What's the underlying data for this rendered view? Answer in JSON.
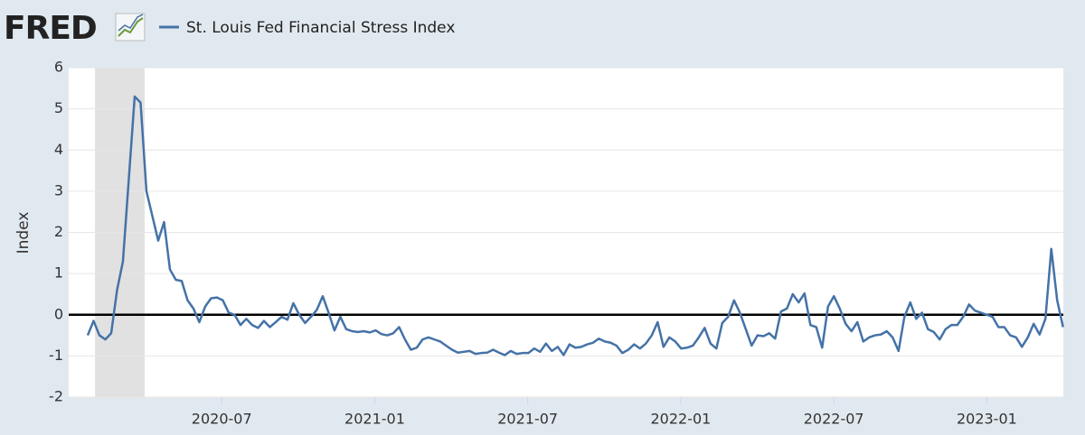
{
  "brand": "FRED",
  "chart_data": {
    "type": "line",
    "y_label": "Index",
    "xlim": [
      2020.0,
      2023.25
    ],
    "xticks": [
      {
        "value": 2020.5,
        "label": "2020-07"
      },
      {
        "value": 2021.0,
        "label": "2021-01"
      },
      {
        "value": 2021.5,
        "label": "2021-07"
      },
      {
        "value": 2022.0,
        "label": "2022-01"
      },
      {
        "value": 2022.5,
        "label": "2022-07"
      },
      {
        "value": 2023.0,
        "label": "2023-01"
      }
    ],
    "ylim": [
      -2,
      6
    ],
    "yticks": [
      -2,
      -1,
      0,
      1,
      2,
      3,
      4,
      5,
      6
    ],
    "grid": true,
    "zero_line": true,
    "shading": [
      {
        "start": 2020.086,
        "end": 2020.248,
        "color": "#e1e1e1"
      }
    ],
    "x": [
      2020.062,
      2020.0812,
      2020.1004,
      2020.1196,
      2020.1388,
      2020.158,
      2020.1772,
      2020.1964,
      2020.2156,
      2020.2348,
      2020.254,
      2020.2732,
      2020.2924,
      2020.3116,
      2020.3308,
      2020.35,
      2020.3692,
      2020.3884,
      2020.4076,
      2020.4268,
      2020.446,
      2020.4652,
      2020.4844,
      2020.5036,
      2020.5228,
      2020.542,
      2020.5612,
      2020.5804,
      2020.5996,
      2020.6188,
      2020.638,
      2020.6572,
      2020.6764,
      2020.6956,
      2020.7148,
      2020.734,
      2020.7532,
      2020.7724,
      2020.7916,
      2020.8108,
      2020.83,
      2020.8492,
      2020.8684,
      2020.8876,
      2020.9068,
      2020.926,
      2020.9452,
      2020.9644,
      2020.9836,
      2021.0028,
      2021.022,
      2021.0412,
      2021.0604,
      2021.0796,
      2021.0988,
      2021.118,
      2021.1372,
      2021.1564,
      2021.1756,
      2021.1948,
      2021.214,
      2021.2332,
      2021.2524,
      2021.2716,
      2021.2908,
      2021.31,
      2021.3292,
      2021.3484,
      2021.3676,
      2021.3868,
      2021.406,
      2021.4252,
      2021.4444,
      2021.4636,
      2021.4828,
      2021.502,
      2021.5212,
      2021.5404,
      2021.5596,
      2021.5788,
      2021.598,
      2021.6172,
      2021.6364,
      2021.6556,
      2021.6748,
      2021.694,
      2021.7132,
      2021.7324,
      2021.7516,
      2021.7708,
      2021.79,
      2021.8092,
      2021.8284,
      2021.8476,
      2021.8668,
      2021.886,
      2021.9052,
      2021.9244,
      2021.9436,
      2021.9628,
      2021.982,
      2022.0012,
      2022.0204,
      2022.0396,
      2022.0588,
      2022.078,
      2022.0972,
      2022.1164,
      2022.1356,
      2022.1548,
      2022.174,
      2022.1932,
      2022.2124,
      2022.2316,
      2022.2508,
      2022.27,
      2022.2892,
      2022.3084,
      2022.3276,
      2022.3468,
      2022.366,
      2022.3852,
      2022.4044,
      2022.4236,
      2022.4428,
      2022.462,
      2022.4812,
      2022.5004,
      2022.5196,
      2022.5388,
      2022.558,
      2022.5772,
      2022.5964,
      2022.6156,
      2022.6348,
      2022.654,
      2022.6732,
      2022.6924,
      2022.7116,
      2022.7308,
      2022.75,
      2022.7692,
      2022.7884,
      2022.8076,
      2022.8268,
      2022.846,
      2022.8652,
      2022.8844,
      2022.9036,
      2022.9228,
      2022.942,
      2022.9612,
      2022.9804,
      2022.9996,
      2023.0188,
      2023.038,
      2023.0572,
      2023.0764,
      2023.0956,
      2023.1148,
      2023.134,
      2023.1532,
      2023.1724,
      2023.1916,
      2023.2108,
      2023.23,
      2023.2492
    ],
    "series": [
      {
        "name": "St. Louis Fed Financial Stress Index",
        "color": "#4572a7",
        "values": [
          -0.5,
          -0.15,
          -0.5,
          -0.6,
          -0.45,
          0.6,
          1.3,
          3.3,
          5.3,
          5.15,
          3.0,
          2.4,
          1.8,
          2.25,
          1.1,
          0.85,
          0.82,
          0.35,
          0.15,
          -0.18,
          0.2,
          0.4,
          0.42,
          0.35,
          0.05,
          0.0,
          -0.25,
          -0.1,
          -0.25,
          -0.32,
          -0.15,
          -0.3,
          -0.18,
          -0.05,
          -0.12,
          0.28,
          0.0,
          -0.2,
          -0.05,
          0.12,
          0.45,
          0.05,
          -0.38,
          -0.05,
          -0.35,
          -0.4,
          -0.42,
          -0.4,
          -0.43,
          -0.38,
          -0.47,
          -0.5,
          -0.45,
          -0.3,
          -0.6,
          -0.85,
          -0.8,
          -0.6,
          -0.55,
          -0.6,
          -0.65,
          -0.75,
          -0.85,
          -0.92,
          -0.9,
          -0.88,
          -0.95,
          -0.93,
          -0.92,
          -0.85,
          -0.92,
          -0.98,
          -0.88,
          -0.95,
          -0.93,
          -0.93,
          -0.82,
          -0.9,
          -0.7,
          -0.88,
          -0.78,
          -0.98,
          -0.72,
          -0.8,
          -0.78,
          -0.72,
          -0.68,
          -0.58,
          -0.65,
          -0.68,
          -0.75,
          -0.93,
          -0.85,
          -0.72,
          -0.82,
          -0.7,
          -0.5,
          -0.18,
          -0.78,
          -0.55,
          -0.65,
          -0.82,
          -0.8,
          -0.75,
          -0.55,
          -0.32,
          -0.7,
          -0.82,
          -0.2,
          -0.05,
          0.35,
          0.05,
          -0.35,
          -0.75,
          -0.5,
          -0.52,
          -0.45,
          -0.58,
          0.08,
          0.15,
          0.5,
          0.3,
          0.52,
          -0.25,
          -0.3,
          -0.8,
          0.2,
          0.45,
          0.15,
          -0.22,
          -0.4,
          -0.18,
          -0.65,
          -0.55,
          -0.5,
          -0.48,
          -0.4,
          -0.55,
          -0.88,
          -0.05,
          0.3,
          -0.1,
          0.05,
          -0.35,
          -0.42,
          -0.6,
          -0.35,
          -0.25,
          -0.25,
          -0.05,
          0.25,
          0.1,
          0.05,
          0.0,
          -0.05,
          -0.3,
          -0.3,
          -0.5,
          -0.55,
          -0.78,
          -0.55,
          -0.22,
          -0.48,
          -0.1,
          1.6,
          0.35,
          -0.3
        ]
      }
    ]
  }
}
